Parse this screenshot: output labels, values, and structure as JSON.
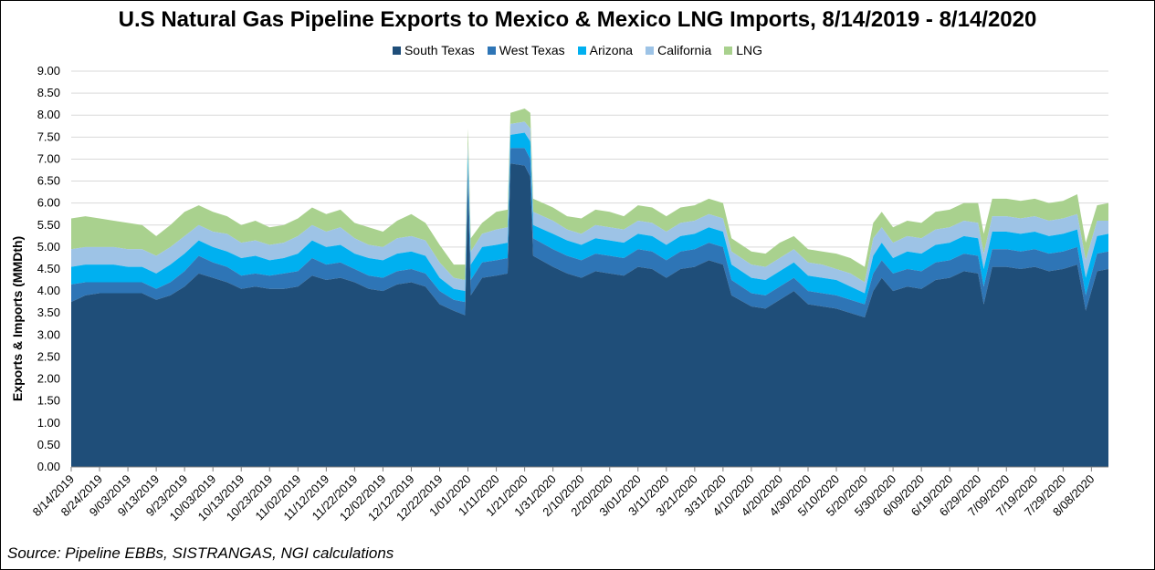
{
  "chart_data": {
    "type": "area",
    "stacked": true,
    "title": "U.S Natural Gas Pipeline Exports to Mexico & Mexico LNG Imports, 8/14/2019 - 8/14/2020",
    "ylabel": "Exports & Imports (MMDth)",
    "xlabel": "",
    "ylim": [
      0,
      9
    ],
    "ystep": 0.5,
    "grid": true,
    "legend_position": "top-center",
    "x_tick_labels": [
      "8/14/2019",
      "8/24/2019",
      "9/03/2019",
      "9/13/2019",
      "9/23/2019",
      "10/03/2019",
      "10/13/2019",
      "10/23/2019",
      "11/02/2019",
      "11/12/2019",
      "11/22/2019",
      "12/02/2019",
      "12/12/2019",
      "12/22/2019",
      "1/01/2020",
      "1/11/2020",
      "1/21/2020",
      "1/31/2020",
      "2/10/2020",
      "2/20/2020",
      "3/01/2020",
      "3/11/2020",
      "3/21/2020",
      "3/31/2020",
      "4/10/2020",
      "4/20/2020",
      "4/30/2020",
      "5/10/2020",
      "5/20/2020",
      "5/30/2020",
      "6/09/2020",
      "6/19/2020",
      "6/29/2020",
      "7/09/2020",
      "7/19/2020",
      "7/29/2020",
      "8/08/2020"
    ],
    "total_days": 367,
    "series_names": [
      "South Texas",
      "West Texas",
      "Arizona",
      "California",
      "LNG"
    ],
    "series_colors": [
      "#1f4e79",
      "#2e75b6",
      "#00b0f0",
      "#9dc3e6",
      "#a9d18e"
    ],
    "cumulative_points": [
      {
        "x": "8/14/2019",
        "y": [
          3.75,
          4.15,
          4.55,
          4.95,
          5.65
        ]
      },
      {
        "x": "8/19/2019",
        "y": [
          3.9,
          4.2,
          4.6,
          5.0,
          5.7
        ]
      },
      {
        "x": "8/24/2019",
        "y": [
          3.95,
          4.2,
          4.6,
          5.0,
          5.65
        ]
      },
      {
        "x": "8/29/2019",
        "y": [
          3.95,
          4.2,
          4.6,
          5.0,
          5.6
        ]
      },
      {
        "x": "9/03/2019",
        "y": [
          3.95,
          4.2,
          4.55,
          4.95,
          5.55
        ]
      },
      {
        "x": "9/08/2019",
        "y": [
          3.95,
          4.2,
          4.55,
          4.95,
          5.5
        ]
      },
      {
        "x": "9/13/2019",
        "y": [
          3.8,
          4.05,
          4.4,
          4.8,
          5.25
        ]
      },
      {
        "x": "9/18/2019",
        "y": [
          3.9,
          4.2,
          4.6,
          5.0,
          5.5
        ]
      },
      {
        "x": "9/23/2019",
        "y": [
          4.1,
          4.45,
          4.85,
          5.25,
          5.8
        ]
      },
      {
        "x": "9/28/2019",
        "y": [
          4.4,
          4.8,
          5.15,
          5.5,
          5.95
        ]
      },
      {
        "x": "10/03/2019",
        "y": [
          4.3,
          4.65,
          5.0,
          5.35,
          5.8
        ]
      },
      {
        "x": "10/08/2019",
        "y": [
          4.2,
          4.55,
          4.9,
          5.3,
          5.7
        ]
      },
      {
        "x": "10/13/2019",
        "y": [
          4.05,
          4.35,
          4.75,
          5.1,
          5.5
        ]
      },
      {
        "x": "10/18/2019",
        "y": [
          4.1,
          4.4,
          4.8,
          5.15,
          5.6
        ]
      },
      {
        "x": "10/23/2019",
        "y": [
          4.05,
          4.35,
          4.7,
          5.05,
          5.45
        ]
      },
      {
        "x": "10/28/2019",
        "y": [
          4.05,
          4.4,
          4.75,
          5.1,
          5.5
        ]
      },
      {
        "x": "11/02/2019",
        "y": [
          4.1,
          4.45,
          4.85,
          5.25,
          5.65
        ]
      },
      {
        "x": "11/07/2019",
        "y": [
          4.35,
          4.75,
          5.15,
          5.5,
          5.9
        ]
      },
      {
        "x": "11/12/2019",
        "y": [
          4.25,
          4.6,
          5.0,
          5.35,
          5.75
        ]
      },
      {
        "x": "11/17/2019",
        "y": [
          4.3,
          4.65,
          5.05,
          5.45,
          5.85
        ]
      },
      {
        "x": "11/22/2019",
        "y": [
          4.2,
          4.5,
          4.85,
          5.2,
          5.55
        ]
      },
      {
        "x": "11/27/2019",
        "y": [
          4.05,
          4.35,
          4.75,
          5.05,
          5.45
        ]
      },
      {
        "x": "12/02/2019",
        "y": [
          4.0,
          4.3,
          4.7,
          5.0,
          5.35
        ]
      },
      {
        "x": "12/07/2019",
        "y": [
          4.15,
          4.45,
          4.85,
          5.2,
          5.6
        ]
      },
      {
        "x": "12/12/2019",
        "y": [
          4.2,
          4.5,
          4.9,
          5.25,
          5.75
        ]
      },
      {
        "x": "12/17/2019",
        "y": [
          4.1,
          4.4,
          4.8,
          5.15,
          5.55
        ]
      },
      {
        "x": "12/22/2019",
        "y": [
          3.7,
          4.0,
          4.3,
          4.65,
          5.05
        ]
      },
      {
        "x": "12/27/2019",
        "y": [
          3.55,
          3.8,
          4.05,
          4.3,
          4.6
        ]
      },
      {
        "x": "12/31/2019",
        "y": [
          3.45,
          3.75,
          4.0,
          4.25,
          4.6
        ]
      },
      {
        "x": "1/01/2020",
        "y": [
          6.5,
          6.85,
          7.1,
          7.35,
          7.7
        ]
      },
      {
        "x": "1/02/2020",
        "y": [
          3.9,
          4.25,
          4.6,
          4.9,
          5.2
        ]
      },
      {
        "x": "1/06/2020",
        "y": [
          4.3,
          4.65,
          5.0,
          5.3,
          5.55
        ]
      },
      {
        "x": "1/11/2020",
        "y": [
          4.35,
          4.7,
          5.05,
          5.4,
          5.8
        ]
      },
      {
        "x": "1/15/2020",
        "y": [
          4.4,
          4.75,
          5.1,
          5.45,
          5.85
        ]
      },
      {
        "x": "1/16/2020",
        "y": [
          6.9,
          7.25,
          7.55,
          7.8,
          8.05
        ]
      },
      {
        "x": "1/21/2020",
        "y": [
          6.85,
          7.25,
          7.6,
          7.85,
          8.15
        ]
      },
      {
        "x": "1/23/2020",
        "y": [
          6.6,
          7.0,
          7.4,
          7.7,
          8.05
        ]
      },
      {
        "x": "1/24/2020",
        "y": [
          4.8,
          5.2,
          5.5,
          5.8,
          6.1
        ]
      },
      {
        "x": "1/31/2020",
        "y": [
          4.55,
          4.95,
          5.3,
          5.6,
          5.9
        ]
      },
      {
        "x": "2/05/2020",
        "y": [
          4.4,
          4.8,
          5.15,
          5.4,
          5.7
        ]
      },
      {
        "x": "2/10/2020",
        "y": [
          4.3,
          4.7,
          5.05,
          5.3,
          5.65
        ]
      },
      {
        "x": "2/15/2020",
        "y": [
          4.45,
          4.85,
          5.2,
          5.5,
          5.85
        ]
      },
      {
        "x": "2/20/2020",
        "y": [
          4.4,
          4.8,
          5.15,
          5.45,
          5.8
        ]
      },
      {
        "x": "2/25/2020",
        "y": [
          4.35,
          4.75,
          5.1,
          5.4,
          5.7
        ]
      },
      {
        "x": "3/01/2020",
        "y": [
          4.55,
          4.95,
          5.3,
          5.6,
          5.95
        ]
      },
      {
        "x": "3/06/2020",
        "y": [
          4.5,
          4.9,
          5.25,
          5.55,
          5.9
        ]
      },
      {
        "x": "3/11/2020",
        "y": [
          4.3,
          4.7,
          5.05,
          5.35,
          5.7
        ]
      },
      {
        "x": "3/16/2020",
        "y": [
          4.5,
          4.9,
          5.25,
          5.55,
          5.9
        ]
      },
      {
        "x": "3/21/2020",
        "y": [
          4.55,
          4.95,
          5.3,
          5.6,
          5.95
        ]
      },
      {
        "x": "3/26/2020",
        "y": [
          4.7,
          5.1,
          5.45,
          5.75,
          6.1
        ]
      },
      {
        "x": "3/31/2020",
        "y": [
          4.6,
          5.0,
          5.35,
          5.65,
          6.0
        ]
      },
      {
        "x": "4/03/2020",
        "y": [
          3.9,
          4.25,
          4.6,
          4.9,
          5.2
        ]
      },
      {
        "x": "4/10/2020",
        "y": [
          3.65,
          3.95,
          4.3,
          4.6,
          4.9
        ]
      },
      {
        "x": "4/15/2020",
        "y": [
          3.6,
          3.9,
          4.25,
          4.55,
          4.85
        ]
      },
      {
        "x": "4/20/2020",
        "y": [
          3.8,
          4.1,
          4.45,
          4.75,
          5.1
        ]
      },
      {
        "x": "4/25/2020",
        "y": [
          4.0,
          4.3,
          4.65,
          4.95,
          5.25
        ]
      },
      {
        "x": "4/30/2020",
        "y": [
          3.7,
          4.0,
          4.35,
          4.65,
          4.95
        ]
      },
      {
        "x": "5/05/2020",
        "y": [
          3.65,
          3.95,
          4.3,
          4.6,
          4.9
        ]
      },
      {
        "x": "5/10/2020",
        "y": [
          3.6,
          3.9,
          4.25,
          4.5,
          4.85
        ]
      },
      {
        "x": "5/15/2020",
        "y": [
          3.5,
          3.8,
          4.1,
          4.4,
          4.75
        ]
      },
      {
        "x": "5/20/2020",
        "y": [
          3.4,
          3.7,
          3.95,
          4.2,
          4.55
        ]
      },
      {
        "x": "5/23/2020",
        "y": [
          4.0,
          4.4,
          4.8,
          5.2,
          5.55
        ]
      },
      {
        "x": "5/26/2020",
        "y": [
          4.3,
          4.7,
          5.1,
          5.45,
          5.8
        ]
      },
      {
        "x": "5/30/2020",
        "y": [
          4.0,
          4.4,
          4.75,
          5.1,
          5.45
        ]
      },
      {
        "x": "6/04/2020",
        "y": [
          4.1,
          4.5,
          4.9,
          5.25,
          5.6
        ]
      },
      {
        "x": "6/09/2020",
        "y": [
          4.05,
          4.45,
          4.85,
          5.2,
          5.55
        ]
      },
      {
        "x": "6/14/2020",
        "y": [
          4.25,
          4.65,
          5.05,
          5.4,
          5.8
        ]
      },
      {
        "x": "6/19/2020",
        "y": [
          4.3,
          4.7,
          5.1,
          5.45,
          5.85
        ]
      },
      {
        "x": "6/24/2020",
        "y": [
          4.45,
          4.85,
          5.25,
          5.6,
          6.0
        ]
      },
      {
        "x": "6/29/2020",
        "y": [
          4.4,
          4.8,
          5.2,
          5.55,
          6.0
        ]
      },
      {
        "x": "7/01/2020",
        "y": [
          3.7,
          4.1,
          4.5,
          4.85,
          5.3
        ]
      },
      {
        "x": "7/04/2020",
        "y": [
          4.55,
          4.95,
          5.35,
          5.7,
          6.1
        ]
      },
      {
        "x": "7/09/2020",
        "y": [
          4.55,
          4.95,
          5.35,
          5.7,
          6.1
        ]
      },
      {
        "x": "7/14/2020",
        "y": [
          4.5,
          4.9,
          5.3,
          5.65,
          6.05
        ]
      },
      {
        "x": "7/19/2020",
        "y": [
          4.55,
          4.95,
          5.35,
          5.7,
          6.1
        ]
      },
      {
        "x": "7/24/2020",
        "y": [
          4.45,
          4.85,
          5.25,
          5.6,
          6.0
        ]
      },
      {
        "x": "7/29/2020",
        "y": [
          4.5,
          4.9,
          5.3,
          5.65,
          6.05
        ]
      },
      {
        "x": "8/03/2020",
        "y": [
          4.6,
          5.0,
          5.4,
          5.75,
          6.2
        ]
      },
      {
        "x": "8/06/2020",
        "y": [
          3.55,
          3.9,
          4.3,
          4.7,
          5.1
        ]
      },
      {
        "x": "8/10/2020",
        "y": [
          4.45,
          4.85,
          5.25,
          5.6,
          5.95
        ]
      },
      {
        "x": "8/14/2020",
        "y": [
          4.5,
          4.9,
          5.3,
          5.6,
          6.0
        ]
      }
    ]
  },
  "source": "Source: Pipeline EBBs, SISTRANGAS, NGI calculations"
}
